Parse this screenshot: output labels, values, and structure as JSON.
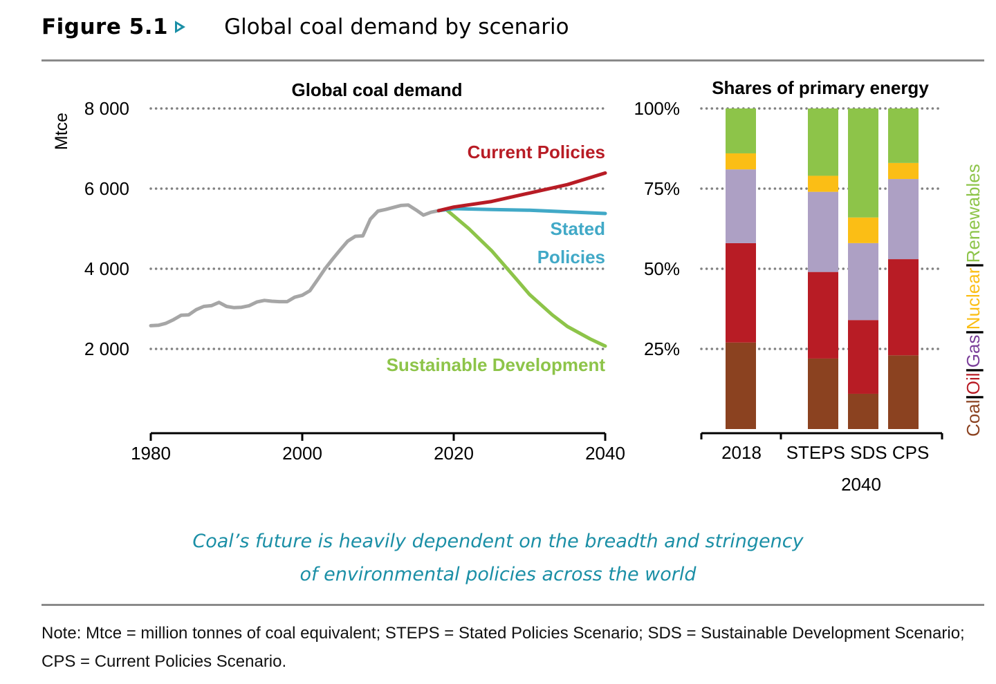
{
  "figure": {
    "number": "Figure 5.1",
    "arrow_icon": "play-arrow-icon",
    "title": "Global coal demand by scenario",
    "accent_color": "#1b8fa6"
  },
  "caption": {
    "line1": "Coal’s future is heavily dependent on the breadth and stringency",
    "line2": "of environmental policies across the world"
  },
  "note": "Note: Mtce = million tonnes of coal equivalent; STEPS = Stated Policies Scenario; SDS = Sustainable Development Scenario; CPS = Current Policies Scenario.",
  "chart_data": [
    {
      "type": "line",
      "title": "Global coal demand",
      "ylabel": "Mtce",
      "xlabel": "",
      "xlim": [
        1980,
        2040
      ],
      "ylim": [
        0,
        8000
      ],
      "xticks": [
        "1980",
        "2000",
        "2020",
        "2040"
      ],
      "yticks": [
        {
          "value": 2000,
          "label": "2 000"
        },
        {
          "value": 4000,
          "label": "4 000"
        },
        {
          "value": 6000,
          "label": "6 000"
        },
        {
          "value": 8000,
          "label": "8 000"
        }
      ],
      "grid": "horizontal-dotted",
      "series": [
        {
          "name": "Historical",
          "color": "#a6a6a6",
          "label": "",
          "x": [
            1980,
            1981,
            1982,
            1983,
            1984,
            1985,
            1986,
            1987,
            1988,
            1989,
            1990,
            1991,
            1992,
            1993,
            1994,
            1995,
            1996,
            1997,
            1998,
            1999,
            2000,
            2001,
            2002,
            2003,
            2004,
            2005,
            2006,
            2007,
            2008,
            2009,
            2010,
            2011,
            2012,
            2013,
            2014,
            2015,
            2016,
            2017,
            2018
          ],
          "y": [
            2580,
            2590,
            2640,
            2730,
            2840,
            2850,
            2980,
            3060,
            3080,
            3160,
            3060,
            3030,
            3040,
            3080,
            3170,
            3210,
            3190,
            3180,
            3180,
            3290,
            3340,
            3450,
            3720,
            4000,
            4240,
            4470,
            4690,
            4810,
            4820,
            5240,
            5440,
            5480,
            5530,
            5580,
            5590,
            5470,
            5340,
            5410,
            5450
          ]
        },
        {
          "name": "Current Policies",
          "color": "#b81c25",
          "label": "Current Policies",
          "x": [
            2018,
            2020,
            2025,
            2030,
            2035,
            2040
          ],
          "y": [
            5450,
            5540,
            5680,
            5890,
            6100,
            6390
          ]
        },
        {
          "name": "Stated Policies",
          "color": "#41a9c7",
          "label": "Stated Policies",
          "x": [
            2018,
            2020,
            2025,
            2030,
            2035,
            2040
          ],
          "y": [
            5450,
            5500,
            5480,
            5460,
            5420,
            5380
          ]
        },
        {
          "name": "Sustainable Development",
          "color": "#8dc449",
          "label": "Sustainable Development",
          "x": [
            2018,
            2019,
            2020,
            2022,
            2025,
            2028,
            2030,
            2033,
            2035,
            2038,
            2040
          ],
          "y": [
            5450,
            5480,
            5320,
            5000,
            4450,
            3800,
            3360,
            2850,
            2560,
            2250,
            2070
          ]
        }
      ]
    },
    {
      "type": "bar",
      "stacked": true,
      "title": "Shares of primary energy",
      "ylim": [
        0,
        100
      ],
      "yticks": [
        "25%",
        "50%",
        "75%",
        "100%"
      ],
      "grid": "horizontal-dotted",
      "categories": [
        "2018",
        "STEPS",
        "SDS",
        "CPS"
      ],
      "group_labels": [
        {
          "label": "2018",
          "categories": [
            "2018"
          ]
        },
        {
          "label": "2040",
          "categories": [
            "STEPS",
            "SDS",
            "CPS"
          ]
        }
      ],
      "series": [
        {
          "name": "Coal",
          "color": "#8b4220",
          "values": [
            27,
            22,
            11,
            23
          ]
        },
        {
          "name": "Oil",
          "color": "#b81c25",
          "values": [
            31,
            27,
            23,
            30
          ]
        },
        {
          "name": "Gas",
          "color": "#ada0c4",
          "values": [
            23,
            25,
            24,
            25
          ]
        },
        {
          "name": "Nuclear",
          "color": "#fbbe15",
          "values": [
            5,
            5,
            8,
            5
          ]
        },
        {
          "name": "Renewables",
          "color": "#8dc449",
          "values": [
            14,
            21,
            34,
            17
          ]
        }
      ],
      "legend": {
        "placement": "right-vertical",
        "separator": "|",
        "label_colors": {
          "Coal": "#8b4220",
          "Oil": "#b81c25",
          "Gas": "#7b3f9a",
          "Nuclear": "#fbbe15",
          "Renewables": "#8dc449"
        }
      }
    }
  ]
}
